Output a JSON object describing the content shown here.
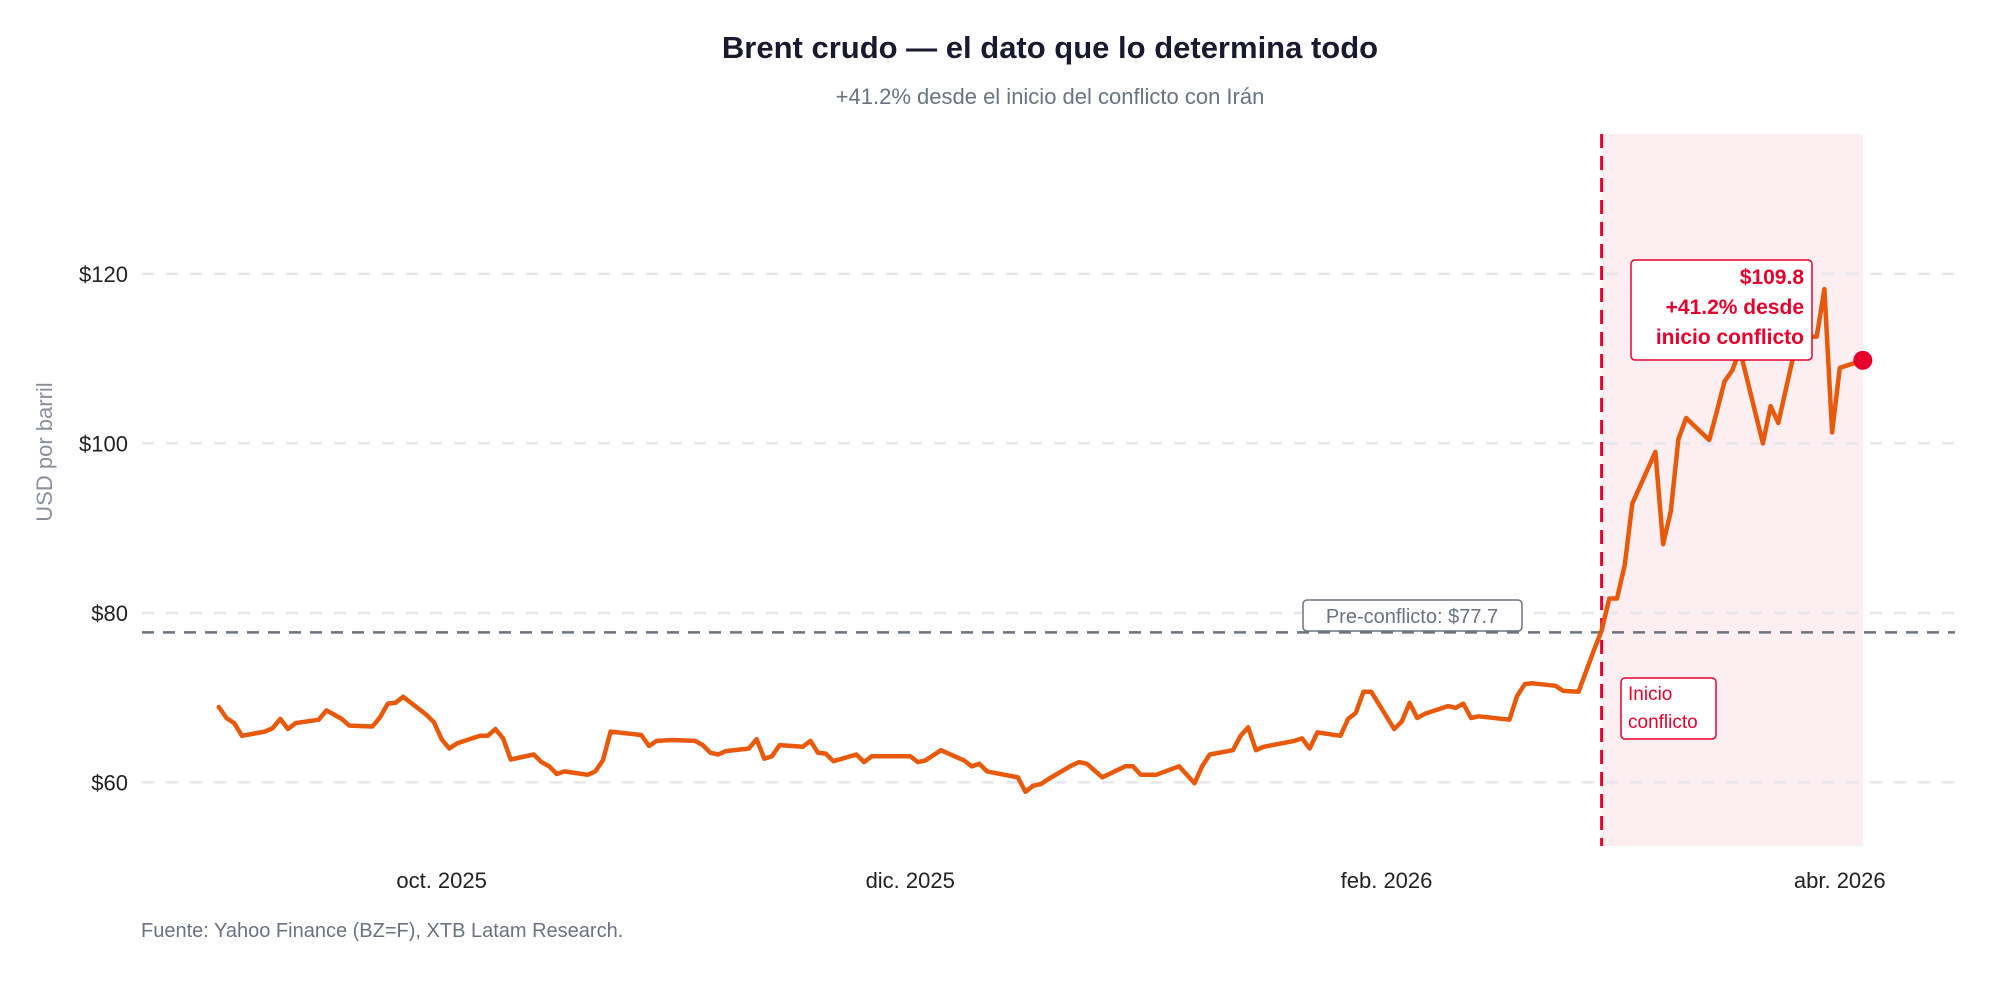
{
  "chart_data": {
    "type": "line",
    "title": "Brent crudo — el dato que lo determina todo",
    "subtitle": "+41.2% desde el inicio del conflicto con Irán",
    "xlabel": "",
    "ylabel": "USD por barril",
    "source": "Fuente: Yahoo Finance (BZ=F), XTB Latam Research.",
    "xlim": [
      "2025-08-23",
      "2026-04-16"
    ],
    "ylim": [
      52.5,
      136.5
    ],
    "x_ticks": [
      {
        "date": "2025-10-01",
        "label": "oct. 2025"
      },
      {
        "date": "2025-12-01",
        "label": "dic. 2025"
      },
      {
        "date": "2026-02-01",
        "label": "feb. 2026"
      },
      {
        "date": "2026-04-01",
        "label": "abr. 2026"
      }
    ],
    "y_ticks": [
      {
        "value": 60,
        "label": "$60"
      },
      {
        "value": 80,
        "label": "$80"
      },
      {
        "value": 100,
        "label": "$100"
      },
      {
        "value": 120,
        "label": "$120"
      }
    ],
    "grid": "horizontal-dashed",
    "colors": {
      "line": "#e8590c",
      "conflict": "#e8002d",
      "shade": "#fdeef1",
      "reference": "#6b7280",
      "grid": "#e6e6ec"
    },
    "reference_line": {
      "value": 77.7,
      "label": "Pre-conflicto: $77.7"
    },
    "conflict_start": {
      "date": "2026-03-01",
      "label_lines": [
        "Inicio",
        "conflicto"
      ]
    },
    "shaded_range": [
      "2026-03-01",
      "2026-04-04"
    ],
    "last_point": {
      "date": "2026-04-04",
      "value": 109.8,
      "label_lines": [
        "$109.8",
        "+41.2% desde",
        "inicio conflicto"
      ]
    },
    "series": [
      {
        "points": [
          [
            "2025-09-02",
            68.9
          ],
          [
            "2025-09-03",
            67.6
          ],
          [
            "2025-09-04",
            67.0
          ],
          [
            "2025-09-05",
            65.5
          ],
          [
            "2025-09-08",
            66.0
          ],
          [
            "2025-09-09",
            66.4
          ],
          [
            "2025-09-10",
            67.5
          ],
          [
            "2025-09-11",
            66.3
          ],
          [
            "2025-09-12",
            67.0
          ],
          [
            "2025-09-15",
            67.4
          ],
          [
            "2025-09-16",
            68.5
          ],
          [
            "2025-09-18",
            67.5
          ],
          [
            "2025-09-19",
            66.7
          ],
          [
            "2025-09-22",
            66.6
          ],
          [
            "2025-09-23",
            67.7
          ],
          [
            "2025-09-24",
            69.3
          ],
          [
            "2025-09-25",
            69.4
          ],
          [
            "2025-09-26",
            70.1
          ],
          [
            "2025-09-29",
            68.0
          ],
          [
            "2025-09-30",
            67.1
          ],
          [
            "2025-10-01",
            65.1
          ],
          [
            "2025-10-02",
            64.0
          ],
          [
            "2025-10-03",
            64.6
          ],
          [
            "2025-10-06",
            65.5
          ],
          [
            "2025-10-07",
            65.5
          ],
          [
            "2025-10-08",
            66.3
          ],
          [
            "2025-10-09",
            65.2
          ],
          [
            "2025-10-10",
            62.7
          ],
          [
            "2025-10-13",
            63.3
          ],
          [
            "2025-10-14",
            62.4
          ],
          [
            "2025-10-15",
            61.9
          ],
          [
            "2025-10-16",
            61.0
          ],
          [
            "2025-10-17",
            61.3
          ],
          [
            "2025-10-20",
            60.9
          ],
          [
            "2025-10-21",
            61.3
          ],
          [
            "2025-10-22",
            62.6
          ],
          [
            "2025-10-23",
            66.0
          ],
          [
            "2025-10-27",
            65.6
          ],
          [
            "2025-10-28",
            64.3
          ],
          [
            "2025-10-29",
            64.9
          ],
          [
            "2025-10-31",
            65.0
          ],
          [
            "2025-11-03",
            64.9
          ],
          [
            "2025-11-04",
            64.4
          ],
          [
            "2025-11-05",
            63.5
          ],
          [
            "2025-11-06",
            63.3
          ],
          [
            "2025-11-07",
            63.7
          ],
          [
            "2025-11-10",
            64.0
          ],
          [
            "2025-11-11",
            65.1
          ],
          [
            "2025-11-12",
            62.8
          ],
          [
            "2025-11-13",
            63.1
          ],
          [
            "2025-11-14",
            64.4
          ],
          [
            "2025-11-17",
            64.2
          ],
          [
            "2025-11-18",
            64.9
          ],
          [
            "2025-11-19",
            63.5
          ],
          [
            "2025-11-20",
            63.4
          ],
          [
            "2025-11-21",
            62.5
          ],
          [
            "2025-11-24",
            63.3
          ],
          [
            "2025-11-25",
            62.4
          ],
          [
            "2025-11-26",
            63.1
          ],
          [
            "2025-12-01",
            63.1
          ],
          [
            "2025-12-02",
            62.4
          ],
          [
            "2025-12-03",
            62.6
          ],
          [
            "2025-12-05",
            63.8
          ],
          [
            "2025-12-08",
            62.6
          ],
          [
            "2025-12-09",
            61.9
          ],
          [
            "2025-12-10",
            62.2
          ],
          [
            "2025-12-11",
            61.3
          ],
          [
            "2025-12-15",
            60.6
          ],
          [
            "2025-12-16",
            58.9
          ],
          [
            "2025-12-17",
            59.6
          ],
          [
            "2025-12-18",
            59.8
          ],
          [
            "2025-12-19",
            60.4
          ],
          [
            "2025-12-22",
            62.0
          ],
          [
            "2025-12-23",
            62.4
          ],
          [
            "2025-12-24",
            62.2
          ],
          [
            "2025-12-26",
            60.6
          ],
          [
            "2025-12-29",
            61.9
          ],
          [
            "2025-12-30",
            61.9
          ],
          [
            "2025-12-31",
            60.9
          ],
          [
            "2026-01-02",
            60.9
          ],
          [
            "2026-01-05",
            61.9
          ],
          [
            "2026-01-07",
            59.9
          ],
          [
            "2026-01-08",
            61.9
          ],
          [
            "2026-01-09",
            63.3
          ],
          [
            "2026-01-12",
            63.8
          ],
          [
            "2026-01-13",
            65.5
          ],
          [
            "2026-01-14",
            66.5
          ],
          [
            "2026-01-15",
            63.8
          ],
          [
            "2026-01-16",
            64.2
          ],
          [
            "2026-01-20",
            64.9
          ],
          [
            "2026-01-21",
            65.2
          ],
          [
            "2026-01-22",
            64.0
          ],
          [
            "2026-01-23",
            65.9
          ],
          [
            "2026-01-26",
            65.5
          ],
          [
            "2026-01-27",
            67.5
          ],
          [
            "2026-01-28",
            68.2
          ],
          [
            "2026-01-29",
            70.7
          ],
          [
            "2026-01-30",
            70.7
          ],
          [
            "2026-02-02",
            66.3
          ],
          [
            "2026-02-03",
            67.2
          ],
          [
            "2026-02-04",
            69.4
          ],
          [
            "2026-02-05",
            67.6
          ],
          [
            "2026-02-06",
            68.1
          ],
          [
            "2026-02-09",
            69.0
          ],
          [
            "2026-02-10",
            68.8
          ],
          [
            "2026-02-11",
            69.3
          ],
          [
            "2026-02-12",
            67.6
          ],
          [
            "2026-02-13",
            67.8
          ],
          [
            "2026-02-17",
            67.4
          ],
          [
            "2026-02-18",
            70.2
          ],
          [
            "2026-02-19",
            71.6
          ],
          [
            "2026-02-20",
            71.7
          ],
          [
            "2026-02-23",
            71.4
          ],
          [
            "2026-02-24",
            70.8
          ],
          [
            "2026-02-26",
            70.7
          ],
          [
            "2026-02-28",
            75.6
          ],
          [
            "2026-03-01",
            77.9
          ],
          [
            "2026-03-02",
            81.7
          ],
          [
            "2026-03-03",
            81.7
          ],
          [
            "2026-03-04",
            85.6
          ],
          [
            "2026-03-05",
            92.9
          ],
          [
            "2026-03-08",
            99.0
          ],
          [
            "2026-03-09",
            88.1
          ],
          [
            "2026-03-10",
            92.0
          ],
          [
            "2026-03-11",
            100.5
          ],
          [
            "2026-03-12",
            103.0
          ],
          [
            "2026-03-15",
            100.4
          ],
          [
            "2026-03-16",
            103.8
          ],
          [
            "2026-03-17",
            107.3
          ],
          [
            "2026-03-18",
            108.6
          ],
          [
            "2026-03-19",
            111.0
          ],
          [
            "2026-03-22",
            100.0
          ],
          [
            "2026-03-23",
            104.4
          ],
          [
            "2026-03-24",
            102.4
          ],
          [
            "2026-03-26",
            110.5
          ],
          [
            "2026-03-28",
            112.6
          ],
          [
            "2026-03-29",
            112.6
          ],
          [
            "2026-03-30",
            118.2
          ],
          [
            "2026-03-31",
            101.3
          ],
          [
            "2026-04-01",
            108.9
          ],
          [
            "2026-04-04",
            109.8
          ]
        ]
      }
    ]
  }
}
